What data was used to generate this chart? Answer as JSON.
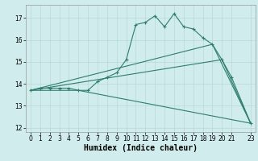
{
  "line1_x": [
    0,
    1,
    2,
    3,
    4,
    5,
    6,
    7,
    8,
    9,
    10,
    11,
    12,
    13,
    14,
    15,
    16,
    17,
    18,
    19,
    20,
    21,
    23
  ],
  "line1_y": [
    13.7,
    13.8,
    13.8,
    13.8,
    13.8,
    13.7,
    13.7,
    14.1,
    14.3,
    14.5,
    15.1,
    16.7,
    16.8,
    17.1,
    16.6,
    17.2,
    16.6,
    16.5,
    16.1,
    15.8,
    15.1,
    14.3,
    12.2
  ],
  "line2_x": [
    0,
    5,
    23
  ],
  "line2_y": [
    13.7,
    13.7,
    12.2
  ],
  "line3_x": [
    0,
    20,
    23
  ],
  "line3_y": [
    13.7,
    15.1,
    12.2
  ],
  "line4_x": [
    0,
    19,
    23
  ],
  "line4_y": [
    13.7,
    15.8,
    12.2
  ],
  "color": "#2e7d6e",
  "bg_color": "#d0ecec",
  "grid_color": "#b8d8d8",
  "xlabel": "Humidex (Indice chaleur)",
  "ylim": [
    11.8,
    17.6
  ],
  "xlim": [
    -0.5,
    23.5
  ],
  "yticks": [
    12,
    13,
    14,
    15,
    16,
    17
  ],
  "xticks": [
    0,
    1,
    2,
    3,
    4,
    5,
    6,
    7,
    8,
    9,
    10,
    11,
    12,
    13,
    14,
    15,
    16,
    17,
    18,
    19,
    20,
    21,
    23
  ],
  "xlabel_fontsize": 7,
  "tick_labelsize": 5.5
}
